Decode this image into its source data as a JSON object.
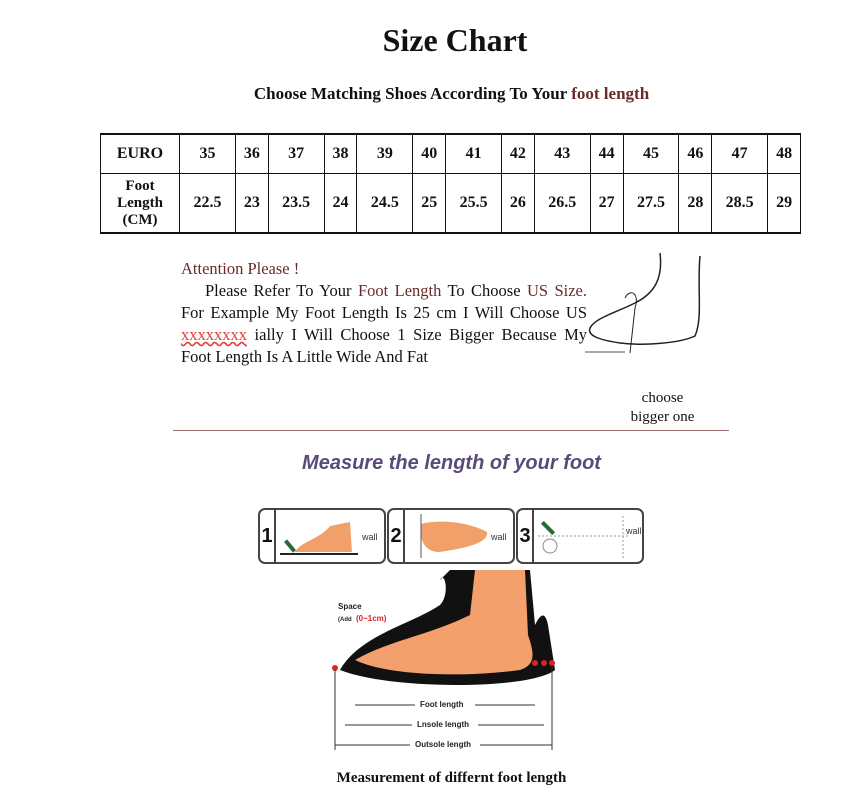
{
  "title": "Size Chart",
  "subtitle": {
    "prefix": "Choose Matching Shoes According To Your ",
    "highlight": "foot length"
  },
  "table": {
    "rows": [
      {
        "header": "EURO",
        "values": [
          "35",
          "36",
          "37",
          "38",
          "39",
          "40",
          "41",
          "42",
          "43",
          "44",
          "45",
          "46",
          "47",
          "48"
        ]
      },
      {
        "header": "Foot Length (CM)",
        "values": [
          "22.5",
          "23",
          "23.5",
          "24",
          "24.5",
          "25",
          "25.5",
          "26",
          "26.5",
          "27",
          "27.5",
          "28",
          "28.5",
          "29"
        ]
      }
    ]
  },
  "attention": {
    "heading": "Attention Please !",
    "p1": "Please Refer To Your ",
    "h1": "Foot Length",
    "p2": " To Choose ",
    "h2": "US Size.",
    "p3": " For Example My Foot Length Is 25 cm I Will Choose US ",
    "redacted": "xxxxxxxx",
    "p4": " ially I Will Choose 1 Size Bigger Because My Foot Length Is A Little Wide And Fat"
  },
  "choose_note": {
    "line1": "choose",
    "line2": "bigger one"
  },
  "measure_title": "Measure the length of your foot",
  "steps": [
    {
      "num": "1",
      "wall": "wall"
    },
    {
      "num": "2",
      "wall": "wall"
    },
    {
      "num": "3",
      "wall": "wall"
    }
  ],
  "diagram": {
    "space": "Space",
    "add": "(Add",
    "range": "(0~1cm)",
    "foot_length": "Foot length",
    "insole_length": "Lnsole length",
    "outsole_length": "Outsole length"
  },
  "caption": "Measurement of differnt foot length"
}
